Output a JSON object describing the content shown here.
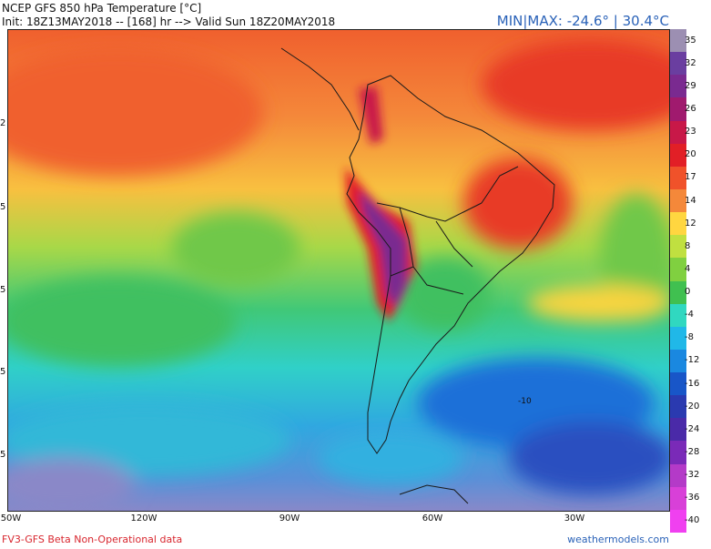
{
  "header": {
    "title": "NCEP GFS 850 hPa Temperature [°C]",
    "init_line": "Init: 18Z13MAY2018 -- [168] hr --> Valid Sun 18Z20MAY2018"
  },
  "minmax": "MIN|MAX: -24.6° | 30.4°C",
  "footer": {
    "left": "FV3-GFS Beta Non-Operational data",
    "right": "weathermodels.com"
  },
  "longitude_ticks": [
    "50W",
    "120W",
    "90W",
    "60W",
    "30W"
  ],
  "latitude_tick_fragments": [
    "2",
    "5",
    "5",
    "5",
    "5"
  ],
  "contour_label": "-10",
  "colorbar": {
    "labels": [
      "35",
      "32",
      "29",
      "26",
      "23",
      "20",
      "17",
      "14",
      "12",
      "8",
      "4",
      "0",
      "-4",
      "-8",
      "-12",
      "-16",
      "-20",
      "-24",
      "-28",
      "-32",
      "-36",
      "-40"
    ],
    "colors": [
      "#9c8fb2",
      "#6a3ea0",
      "#7a2a90",
      "#a01a6e",
      "#c81848",
      "#e21f26",
      "#f0522a",
      "#f4883a",
      "#ffd640",
      "#c0e040",
      "#80d040",
      "#40c050",
      "#30d8c0",
      "#20b8e8",
      "#1a88e0",
      "#1856c8",
      "#2a3ab0",
      "#4a2aa8",
      "#7a2ab8",
      "#b43ac8",
      "#d840d8",
      "#f040f0"
    ]
  },
  "colors": {
    "minmax_blue": "#2a62b8",
    "footer_red": "#d8262e"
  }
}
